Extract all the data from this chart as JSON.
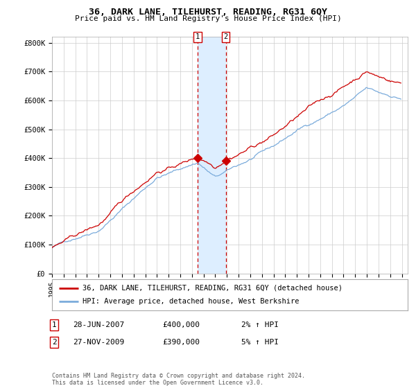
{
  "title": "36, DARK LANE, TILEHURST, READING, RG31 6QY",
  "subtitle": "Price paid vs. HM Land Registry's House Price Index (HPI)",
  "ylabel_ticks": [
    "£0",
    "£100K",
    "£200K",
    "£300K",
    "£400K",
    "£500K",
    "£600K",
    "£700K",
    "£800K"
  ],
  "ytick_values": [
    0,
    100000,
    200000,
    300000,
    400000,
    500000,
    600000,
    700000,
    800000
  ],
  "ylim": [
    0,
    820000
  ],
  "sale1_year": 2007.49,
  "sale1_price": 400000,
  "sale1_label": "1",
  "sale1_date_str": "28-JUN-2007",
  "sale1_hpi_str": "2% ↑ HPI",
  "sale2_year": 2009.9,
  "sale2_price": 390000,
  "sale2_label": "2",
  "sale2_date_str": "27-NOV-2009",
  "sale2_hpi_str": "5% ↑ HPI",
  "sale1_price_str": "£400,000",
  "sale2_price_str": "£390,000",
  "legend_line1": "36, DARK LANE, TILEHURST, READING, RG31 6QY (detached house)",
  "legend_line2": "HPI: Average price, detached house, West Berkshire",
  "footer": "Contains HM Land Registry data © Crown copyright and database right 2024.\nThis data is licensed under the Open Government Licence v3.0.",
  "line_color_red": "#cc0000",
  "line_color_blue": "#7aabdb",
  "highlight_color": "#ddeeff",
  "background_color": "#ffffff",
  "grid_color": "#cccccc",
  "xlim_start": 1995,
  "xlim_end": 2025.5
}
